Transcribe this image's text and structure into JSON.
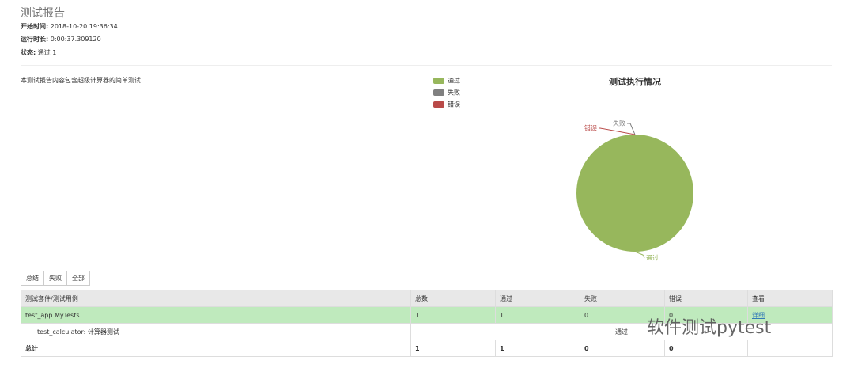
{
  "header": {
    "title": "测试报告",
    "fields": [
      {
        "label": "开始时间:",
        "value": "2018-10-20 19:36:34"
      },
      {
        "label": "运行时长:",
        "value": "0:00:37.309120"
      },
      {
        "label": "状态:",
        "value": "通过 1"
      }
    ]
  },
  "description": "本测试报告内容包含超级计算器的简单测试",
  "chart_data": {
    "type": "pie",
    "title": "测试执行情况",
    "categories": [
      "通过",
      "失败",
      "错误"
    ],
    "values": [
      1,
      0,
      0
    ],
    "colors": [
      "#97b75c",
      "#808080",
      "#b94a48"
    ]
  },
  "buttons": [
    "总结",
    "失败",
    "全部"
  ],
  "table": {
    "headers": [
      "测试套件/测试用例",
      "总数",
      "通过",
      "失败",
      "错误",
      "查看"
    ],
    "suite": [
      "test_app.MyTests",
      1,
      1,
      0,
      0,
      "详细"
    ],
    "case": [
      "test_calculator: 计算器测试",
      "通过"
    ],
    "total": [
      "总计",
      1,
      1,
      0,
      0
    ]
  },
  "watermark": "软件测试pytest"
}
